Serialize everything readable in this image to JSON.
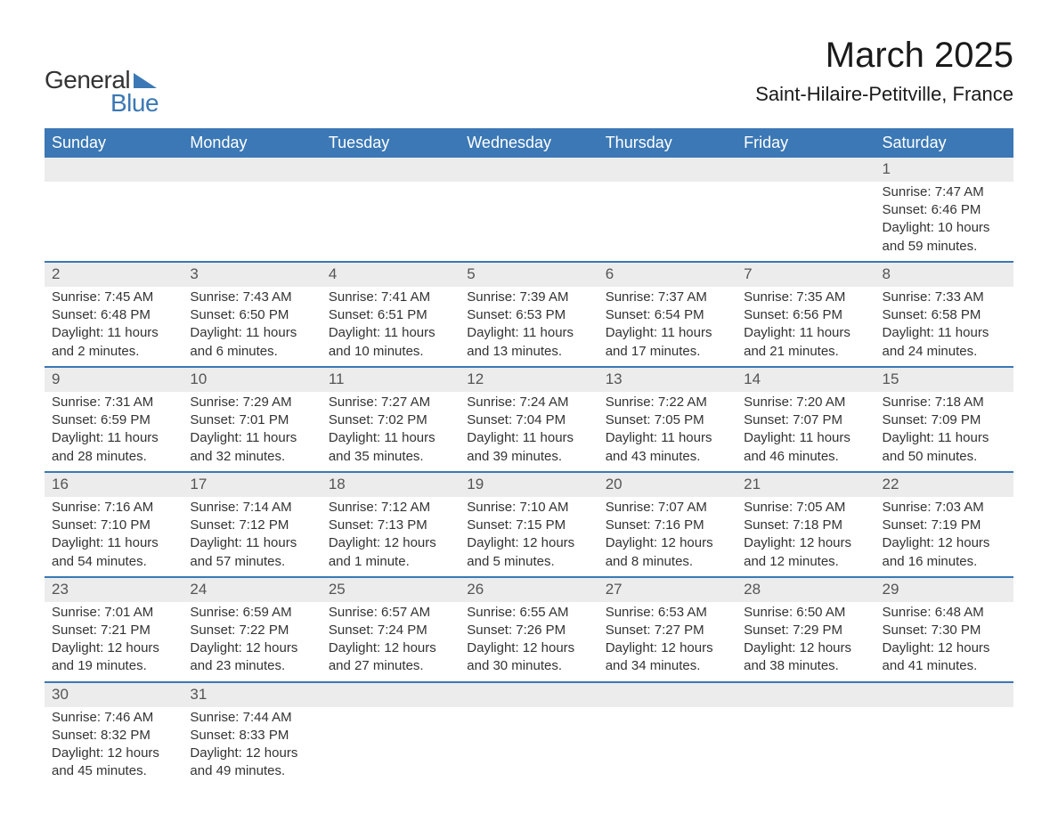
{
  "brand": {
    "name1": "General",
    "name2": "Blue"
  },
  "title": "March 2025",
  "location": "Saint-Hilaire-Petitville, France",
  "colors": {
    "header_bg": "#3b78b5",
    "header_text": "#ffffff",
    "daynum_bg": "#ececec",
    "row_border": "#3b78b5",
    "text": "#333333",
    "page_bg": "#ffffff"
  },
  "typography": {
    "title_fontsize": 40,
    "location_fontsize": 22,
    "header_fontsize": 18,
    "daynum_fontsize": 17,
    "body_fontsize": 15
  },
  "weekdays": [
    "Sunday",
    "Monday",
    "Tuesday",
    "Wednesday",
    "Thursday",
    "Friday",
    "Saturday"
  ],
  "weeks": [
    [
      null,
      null,
      null,
      null,
      null,
      null,
      {
        "day": "1",
        "sunrise": "Sunrise: 7:47 AM",
        "sunset": "Sunset: 6:46 PM",
        "daylight1": "Daylight: 10 hours",
        "daylight2": "and 59 minutes."
      }
    ],
    [
      {
        "day": "2",
        "sunrise": "Sunrise: 7:45 AM",
        "sunset": "Sunset: 6:48 PM",
        "daylight1": "Daylight: 11 hours",
        "daylight2": "and 2 minutes."
      },
      {
        "day": "3",
        "sunrise": "Sunrise: 7:43 AM",
        "sunset": "Sunset: 6:50 PM",
        "daylight1": "Daylight: 11 hours",
        "daylight2": "and 6 minutes."
      },
      {
        "day": "4",
        "sunrise": "Sunrise: 7:41 AM",
        "sunset": "Sunset: 6:51 PM",
        "daylight1": "Daylight: 11 hours",
        "daylight2": "and 10 minutes."
      },
      {
        "day": "5",
        "sunrise": "Sunrise: 7:39 AM",
        "sunset": "Sunset: 6:53 PM",
        "daylight1": "Daylight: 11 hours",
        "daylight2": "and 13 minutes."
      },
      {
        "day": "6",
        "sunrise": "Sunrise: 7:37 AM",
        "sunset": "Sunset: 6:54 PM",
        "daylight1": "Daylight: 11 hours",
        "daylight2": "and 17 minutes."
      },
      {
        "day": "7",
        "sunrise": "Sunrise: 7:35 AM",
        "sunset": "Sunset: 6:56 PM",
        "daylight1": "Daylight: 11 hours",
        "daylight2": "and 21 minutes."
      },
      {
        "day": "8",
        "sunrise": "Sunrise: 7:33 AM",
        "sunset": "Sunset: 6:58 PM",
        "daylight1": "Daylight: 11 hours",
        "daylight2": "and 24 minutes."
      }
    ],
    [
      {
        "day": "9",
        "sunrise": "Sunrise: 7:31 AM",
        "sunset": "Sunset: 6:59 PM",
        "daylight1": "Daylight: 11 hours",
        "daylight2": "and 28 minutes."
      },
      {
        "day": "10",
        "sunrise": "Sunrise: 7:29 AM",
        "sunset": "Sunset: 7:01 PM",
        "daylight1": "Daylight: 11 hours",
        "daylight2": "and 32 minutes."
      },
      {
        "day": "11",
        "sunrise": "Sunrise: 7:27 AM",
        "sunset": "Sunset: 7:02 PM",
        "daylight1": "Daylight: 11 hours",
        "daylight2": "and 35 minutes."
      },
      {
        "day": "12",
        "sunrise": "Sunrise: 7:24 AM",
        "sunset": "Sunset: 7:04 PM",
        "daylight1": "Daylight: 11 hours",
        "daylight2": "and 39 minutes."
      },
      {
        "day": "13",
        "sunrise": "Sunrise: 7:22 AM",
        "sunset": "Sunset: 7:05 PM",
        "daylight1": "Daylight: 11 hours",
        "daylight2": "and 43 minutes."
      },
      {
        "day": "14",
        "sunrise": "Sunrise: 7:20 AM",
        "sunset": "Sunset: 7:07 PM",
        "daylight1": "Daylight: 11 hours",
        "daylight2": "and 46 minutes."
      },
      {
        "day": "15",
        "sunrise": "Sunrise: 7:18 AM",
        "sunset": "Sunset: 7:09 PM",
        "daylight1": "Daylight: 11 hours",
        "daylight2": "and 50 minutes."
      }
    ],
    [
      {
        "day": "16",
        "sunrise": "Sunrise: 7:16 AM",
        "sunset": "Sunset: 7:10 PM",
        "daylight1": "Daylight: 11 hours",
        "daylight2": "and 54 minutes."
      },
      {
        "day": "17",
        "sunrise": "Sunrise: 7:14 AM",
        "sunset": "Sunset: 7:12 PM",
        "daylight1": "Daylight: 11 hours",
        "daylight2": "and 57 minutes."
      },
      {
        "day": "18",
        "sunrise": "Sunrise: 7:12 AM",
        "sunset": "Sunset: 7:13 PM",
        "daylight1": "Daylight: 12 hours",
        "daylight2": "and 1 minute."
      },
      {
        "day": "19",
        "sunrise": "Sunrise: 7:10 AM",
        "sunset": "Sunset: 7:15 PM",
        "daylight1": "Daylight: 12 hours",
        "daylight2": "and 5 minutes."
      },
      {
        "day": "20",
        "sunrise": "Sunrise: 7:07 AM",
        "sunset": "Sunset: 7:16 PM",
        "daylight1": "Daylight: 12 hours",
        "daylight2": "and 8 minutes."
      },
      {
        "day": "21",
        "sunrise": "Sunrise: 7:05 AM",
        "sunset": "Sunset: 7:18 PM",
        "daylight1": "Daylight: 12 hours",
        "daylight2": "and 12 minutes."
      },
      {
        "day": "22",
        "sunrise": "Sunrise: 7:03 AM",
        "sunset": "Sunset: 7:19 PM",
        "daylight1": "Daylight: 12 hours",
        "daylight2": "and 16 minutes."
      }
    ],
    [
      {
        "day": "23",
        "sunrise": "Sunrise: 7:01 AM",
        "sunset": "Sunset: 7:21 PM",
        "daylight1": "Daylight: 12 hours",
        "daylight2": "and 19 minutes."
      },
      {
        "day": "24",
        "sunrise": "Sunrise: 6:59 AM",
        "sunset": "Sunset: 7:22 PM",
        "daylight1": "Daylight: 12 hours",
        "daylight2": "and 23 minutes."
      },
      {
        "day": "25",
        "sunrise": "Sunrise: 6:57 AM",
        "sunset": "Sunset: 7:24 PM",
        "daylight1": "Daylight: 12 hours",
        "daylight2": "and 27 minutes."
      },
      {
        "day": "26",
        "sunrise": "Sunrise: 6:55 AM",
        "sunset": "Sunset: 7:26 PM",
        "daylight1": "Daylight: 12 hours",
        "daylight2": "and 30 minutes."
      },
      {
        "day": "27",
        "sunrise": "Sunrise: 6:53 AM",
        "sunset": "Sunset: 7:27 PM",
        "daylight1": "Daylight: 12 hours",
        "daylight2": "and 34 minutes."
      },
      {
        "day": "28",
        "sunrise": "Sunrise: 6:50 AM",
        "sunset": "Sunset: 7:29 PM",
        "daylight1": "Daylight: 12 hours",
        "daylight2": "and 38 minutes."
      },
      {
        "day": "29",
        "sunrise": "Sunrise: 6:48 AM",
        "sunset": "Sunset: 7:30 PM",
        "daylight1": "Daylight: 12 hours",
        "daylight2": "and 41 minutes."
      }
    ],
    [
      {
        "day": "30",
        "sunrise": "Sunrise: 7:46 AM",
        "sunset": "Sunset: 8:32 PM",
        "daylight1": "Daylight: 12 hours",
        "daylight2": "and 45 minutes."
      },
      {
        "day": "31",
        "sunrise": "Sunrise: 7:44 AM",
        "sunset": "Sunset: 8:33 PM",
        "daylight1": "Daylight: 12 hours",
        "daylight2": "and 49 minutes."
      },
      null,
      null,
      null,
      null,
      null
    ]
  ]
}
